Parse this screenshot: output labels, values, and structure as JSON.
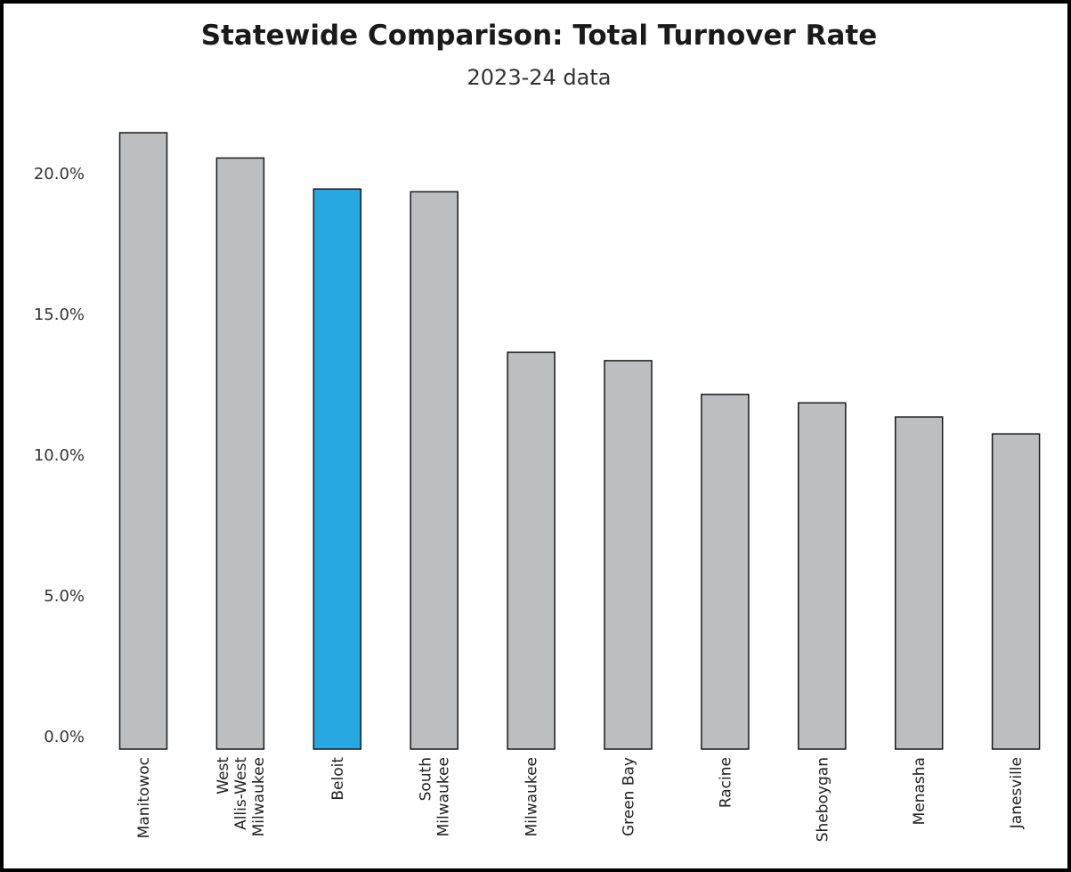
{
  "chart_data": {
    "type": "bar",
    "title": "Statewide Comparison: Total Turnover Rate",
    "subtitle": "2023-24 data",
    "xlabel": "",
    "ylabel": "",
    "ylim": [
      0,
      22.8
    ],
    "yticks": [
      "0.0%",
      "5.0%",
      "10.0%",
      "15.0%",
      "20.0%"
    ],
    "ytick_values": [
      0,
      5,
      10,
      15,
      20
    ],
    "grid": false,
    "legend": "none",
    "categories": [
      [
        "Manitowoc"
      ],
      [
        "West",
        "Allis-West",
        "Milwaukee"
      ],
      [
        "Beloit"
      ],
      [
        "South",
        "Milwaukee"
      ],
      [
        "Milwaukee"
      ],
      [
        "Green Bay"
      ],
      [
        "Racine"
      ],
      [
        "Sheboygan"
      ],
      [
        "Menasha"
      ],
      [
        "Janesville"
      ]
    ],
    "values": [
      21.9,
      21.0,
      19.9,
      19.8,
      14.1,
      13.8,
      12.6,
      12.3,
      11.8,
      11.2
    ],
    "highlight_index": 2,
    "colors": {
      "bar": "#bcbec0",
      "highlight": "#27a8e0",
      "outline": "#1a1a1a"
    }
  }
}
